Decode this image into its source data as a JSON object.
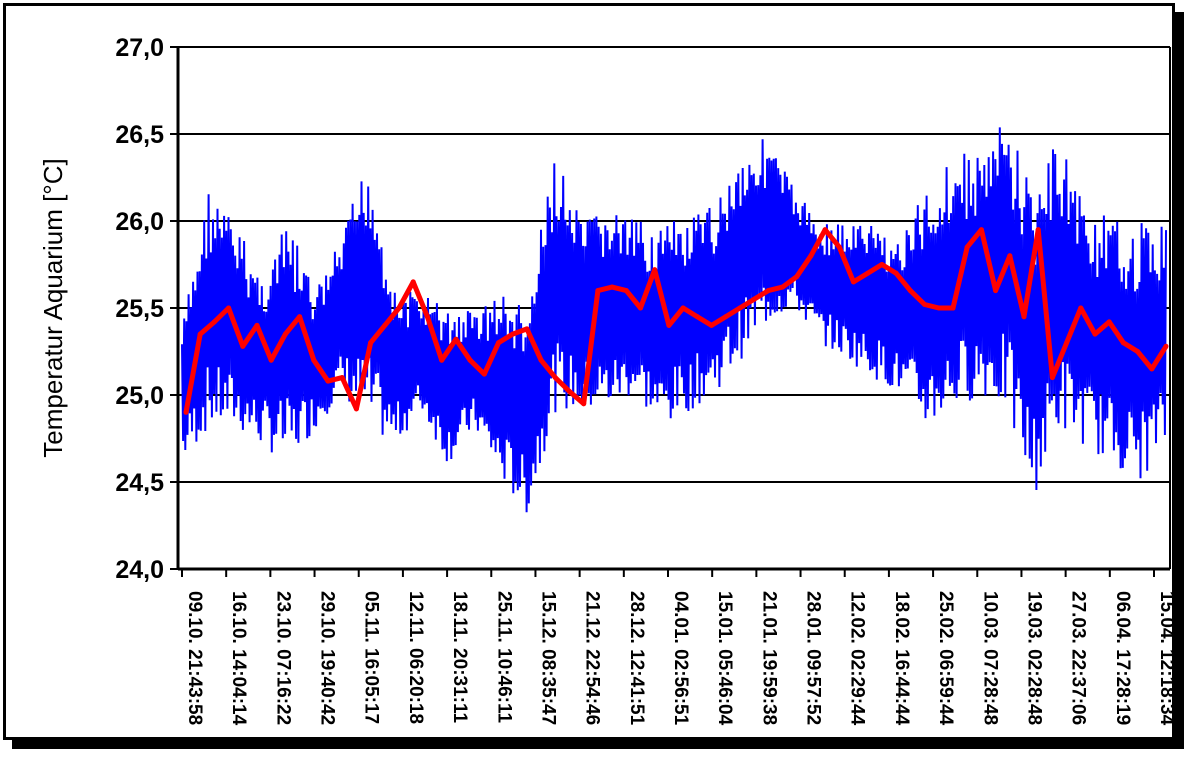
{
  "chart_data": {
    "type": "line",
    "title": "",
    "xlabel": "",
    "ylabel": "Temperatur Aquarium [°C]",
    "ylim": [
      24.0,
      27.0
    ],
    "yticks": [
      "27,0",
      "26,5",
      "26,0",
      "25,5",
      "25,0",
      "24,5",
      "24,0"
    ],
    "ytick_values": [
      27.0,
      26.5,
      26.0,
      25.5,
      25.0,
      24.5,
      24.0
    ],
    "grid": true,
    "legend": "none",
    "x_tick_labels": [
      "09.10. 21:43:58",
      "16.10. 14:04:14",
      "23.10. 07:16:22",
      "29.10. 19:40:42",
      "05.11. 16:05:17",
      "12.11. 06:20:18",
      "18.11. 20:31:11",
      "25.11. 10:46:11",
      "15.12. 08:35:47",
      "21.12. 22:54:46",
      "28.12. 12:41:51",
      "04.01. 02:56:51",
      "15.01. 05:46:04",
      "21.01. 19:59:38",
      "28.01. 09:57:52",
      "12.02. 02:29:44",
      "18.02. 16:44:44",
      "25.02. 06:59:44",
      "10.03. 07:28:48",
      "19.03. 02:28:48",
      "27.03. 22:37:06",
      "06.04. 17:28:19",
      "15.04. 12:18:34"
    ],
    "series": [
      {
        "color": "#0000ff",
        "envelope_low": [
          24.6,
          24.8,
          24.8,
          24.7,
          24.6,
          24.8,
          25.0,
          24.8,
          24.7,
          24.9,
          24.6,
          24.8,
          24.5,
          24.3,
          24.9,
          24.9,
          24.9,
          25.0,
          24.8,
          24.9,
          25.0,
          25.2,
          25.4,
          25.5,
          25.3,
          25.2,
          25.1,
          25.0,
          24.8,
          24.9,
          25.0,
          24.9,
          24.4,
          24.8,
          24.7,
          24.6,
          24.5,
          24.7
        ],
        "envelope_high": [
          25.4,
          26.2,
          26.0,
          25.7,
          26.0,
          25.6,
          25.9,
          26.4,
          25.6,
          25.6,
          25.5,
          25.5,
          25.6,
          25.5,
          26.4,
          26.0,
          26.1,
          26.0,
          26.0,
          26.0,
          26.1,
          26.4,
          26.5,
          26.2,
          26.0,
          26.0,
          26.0,
          25.9,
          26.2,
          26.4,
          26.4,
          26.6,
          26.2,
          26.5,
          26.1,
          26.0,
          26.0,
          26.0
        ]
      },
      {
        "color": "#ff0000",
        "values": [
          24.9,
          25.35,
          25.42,
          25.5,
          25.28,
          25.4,
          25.2,
          25.35,
          25.45,
          25.2,
          25.08,
          25.1,
          24.92,
          25.3,
          25.4,
          25.5,
          25.65,
          25.45,
          25.2,
          25.32,
          25.2,
          25.12,
          25.3,
          25.35,
          25.38,
          25.2,
          25.1,
          25.02,
          24.95,
          25.6,
          25.62,
          25.6,
          25.5,
          25.72,
          25.4,
          25.5,
          25.45,
          25.4,
          25.45,
          25.5,
          25.55,
          25.6,
          25.62,
          25.68,
          25.8,
          25.95,
          25.85,
          25.65,
          25.7,
          25.75,
          25.7,
          25.6,
          25.52,
          25.5,
          25.5,
          25.85,
          25.95,
          25.6,
          25.8,
          25.45,
          25.95,
          25.1,
          25.3,
          25.5,
          25.35,
          25.42,
          25.3,
          25.25,
          25.15,
          25.28
        ]
      }
    ]
  }
}
